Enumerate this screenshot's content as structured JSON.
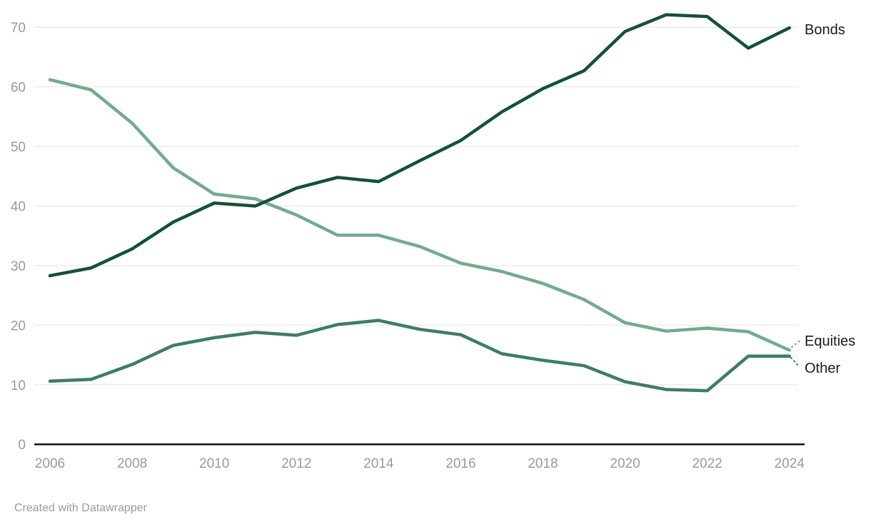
{
  "footer": {
    "credit": "Created with Datawrapper"
  },
  "axis": {
    "y_tick_labels": [
      "0",
      "10",
      "20",
      "30",
      "40",
      "50",
      "60",
      "70"
    ],
    "x_tick_labels": [
      "2006",
      "2008",
      "2010",
      "2012",
      "2014",
      "2016",
      "2018",
      "2020",
      "2022",
      "2024"
    ]
  },
  "chart_data": {
    "type": "line",
    "title": "",
    "xlabel": "",
    "ylabel": "",
    "x": [
      2006,
      2007,
      2008,
      2009,
      2010,
      2011,
      2012,
      2013,
      2014,
      2015,
      2016,
      2017,
      2018,
      2019,
      2020,
      2021,
      2022,
      2023,
      2024
    ],
    "series": [
      {
        "name": "Bonds",
        "color": "#14503a",
        "values": [
          28.3,
          29.6,
          32.8,
          37.3,
          40.5,
          40.0,
          43.0,
          44.8,
          44.1,
          47.6,
          51.0,
          55.8,
          59.7,
          62.7,
          69.3,
          72.1,
          71.8,
          66.5,
          69.9
        ]
      },
      {
        "name": "Equities",
        "color": "#74aa8d",
        "values": [
          61.2,
          59.5,
          53.9,
          46.4,
          42.0,
          41.2,
          38.5,
          35.1,
          35.1,
          33.2,
          30.4,
          29.0,
          27.0,
          24.3,
          20.4,
          19.0,
          19.5,
          18.9,
          15.8
        ]
      },
      {
        "name": "Other",
        "color": "#3e7d63",
        "values": [
          10.6,
          10.9,
          13.4,
          16.6,
          17.9,
          18.8,
          18.3,
          20.1,
          20.8,
          19.3,
          18.4,
          15.2,
          14.1,
          13.2,
          10.5,
          9.2,
          9.0,
          14.8,
          14.8
        ]
      }
    ],
    "ylim": [
      0,
      70
    ],
    "yticks": [
      0,
      10,
      20,
      30,
      40,
      50,
      60,
      70
    ],
    "xticks": [
      2006,
      2008,
      2010,
      2012,
      2014,
      2016,
      2018,
      2020,
      2022,
      2024
    ],
    "grid": "horizontal",
    "legend_position": "direct-labels-right"
  },
  "style": {
    "gridline_color": "#e9e9e9",
    "baseline_color": "#111111",
    "tick_label_color": "#9a9a9a"
  }
}
